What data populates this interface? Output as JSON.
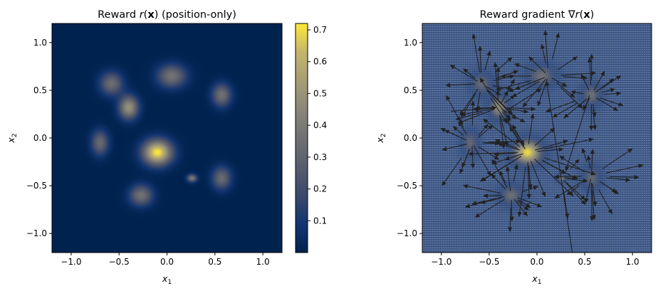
{
  "chart_data": [
    {
      "type": "heatmap",
      "title_parts": [
        "Reward ",
        "r",
        "(",
        "x",
        ") (position-only)"
      ],
      "xlabel_sym": "x",
      "xlabel_sub": "1",
      "ylabel_sym": "x",
      "ylabel_sub": "2",
      "xlim": [
        -1.2,
        1.2
      ],
      "ylim": [
        -1.2,
        1.2
      ],
      "xticks": [
        -1.0,
        -0.5,
        0.0,
        0.5,
        1.0
      ],
      "yticks": [
        -1.0,
        -0.5,
        0.0,
        0.5,
        1.0
      ],
      "xtick_labels": [
        "−1.0",
        "−0.5",
        "0.0",
        "0.5",
        "1.0"
      ],
      "ytick_labels": [
        "−1.0",
        "−0.5",
        "0.0",
        "0.5",
        "1.0"
      ],
      "colormap": "cividis",
      "colorbar": {
        "range": [
          0.0,
          0.72
        ],
        "ticks": [
          0.1,
          0.2,
          0.3,
          0.4,
          0.5,
          0.6,
          0.7
        ],
        "tick_labels": [
          "0.1",
          "0.2",
          "0.3",
          "0.4",
          "0.5",
          "0.6",
          "0.7"
        ]
      },
      "blobs": [
        {
          "x": -0.1,
          "y": -0.15,
          "amp": 0.72,
          "sx": 0.15,
          "sy": 0.13
        },
        {
          "x": -0.4,
          "y": 0.32,
          "amp": 0.5,
          "sx": 0.1,
          "sy": 0.12
        },
        {
          "x": 0.05,
          "y": 0.65,
          "amp": 0.37,
          "sx": 0.15,
          "sy": 0.12
        },
        {
          "x": 0.57,
          "y": 0.45,
          "amp": 0.36,
          "sx": 0.1,
          "sy": 0.12
        },
        {
          "x": -0.58,
          "y": 0.57,
          "amp": 0.34,
          "sx": 0.12,
          "sy": 0.12
        },
        {
          "x": -0.7,
          "y": -0.05,
          "amp": 0.33,
          "sx": 0.09,
          "sy": 0.13
        },
        {
          "x": -0.27,
          "y": -0.6,
          "amp": 0.36,
          "sx": 0.12,
          "sy": 0.11
        },
        {
          "x": 0.57,
          "y": -0.42,
          "amp": 0.33,
          "sx": 0.1,
          "sy": 0.12
        },
        {
          "x": 0.26,
          "y": -0.42,
          "amp": 0.4,
          "sx": 0.05,
          "sy": 0.04
        }
      ]
    },
    {
      "type": "quiver",
      "title_parts": [
        "Reward gradient ",
        "∇",
        "r",
        "(",
        "x",
        ")"
      ],
      "xlabel_sym": "x",
      "xlabel_sub": "1",
      "ylabel_sym": "x",
      "ylabel_sub": "2",
      "xlim": [
        -1.2,
        1.2
      ],
      "ylim": [
        -1.2,
        1.2
      ],
      "xticks": [
        -1.0,
        -0.5,
        0.0,
        0.5,
        1.0
      ],
      "yticks": [
        -1.0,
        -0.5,
        0.0,
        0.5,
        1.0
      ],
      "xtick_labels": [
        "−1.0",
        "−0.5",
        "0.0",
        "0.5",
        "1.0"
      ],
      "ytick_labels": [
        "−1.0",
        "−0.5",
        "0.0",
        "0.5",
        "1.0"
      ],
      "background": "reward heatmap overlaid with blue-gray grid of tiny arrows",
      "arrow_color": "#222222",
      "centers": [
        {
          "x": -0.1,
          "y": -0.15
        },
        {
          "x": -0.4,
          "y": 0.32
        },
        {
          "x": 0.12,
          "y": 0.65
        },
        {
          "x": 0.57,
          "y": 0.45
        },
        {
          "x": -0.58,
          "y": 0.57
        },
        {
          "x": -0.68,
          "y": -0.05
        },
        {
          "x": -0.27,
          "y": -0.6
        },
        {
          "x": 0.57,
          "y": -0.4
        },
        {
          "x": 0.26,
          "y": -0.42
        }
      ],
      "long_arrows": [
        {
          "x0": 0.37,
          "y0": -1.2,
          "x1": 0.1,
          "y1": 0.6
        },
        {
          "x0": -0.9,
          "y0": 0.28,
          "x1": -0.42,
          "y1": 0.32
        },
        {
          "x0": 0.55,
          "y0": 0.45,
          "x1": 0.3,
          "y1": -0.35
        },
        {
          "x0": -0.3,
          "y0": 0.3,
          "x1": 0.05,
          "y1": 0.52
        }
      ]
    }
  ]
}
